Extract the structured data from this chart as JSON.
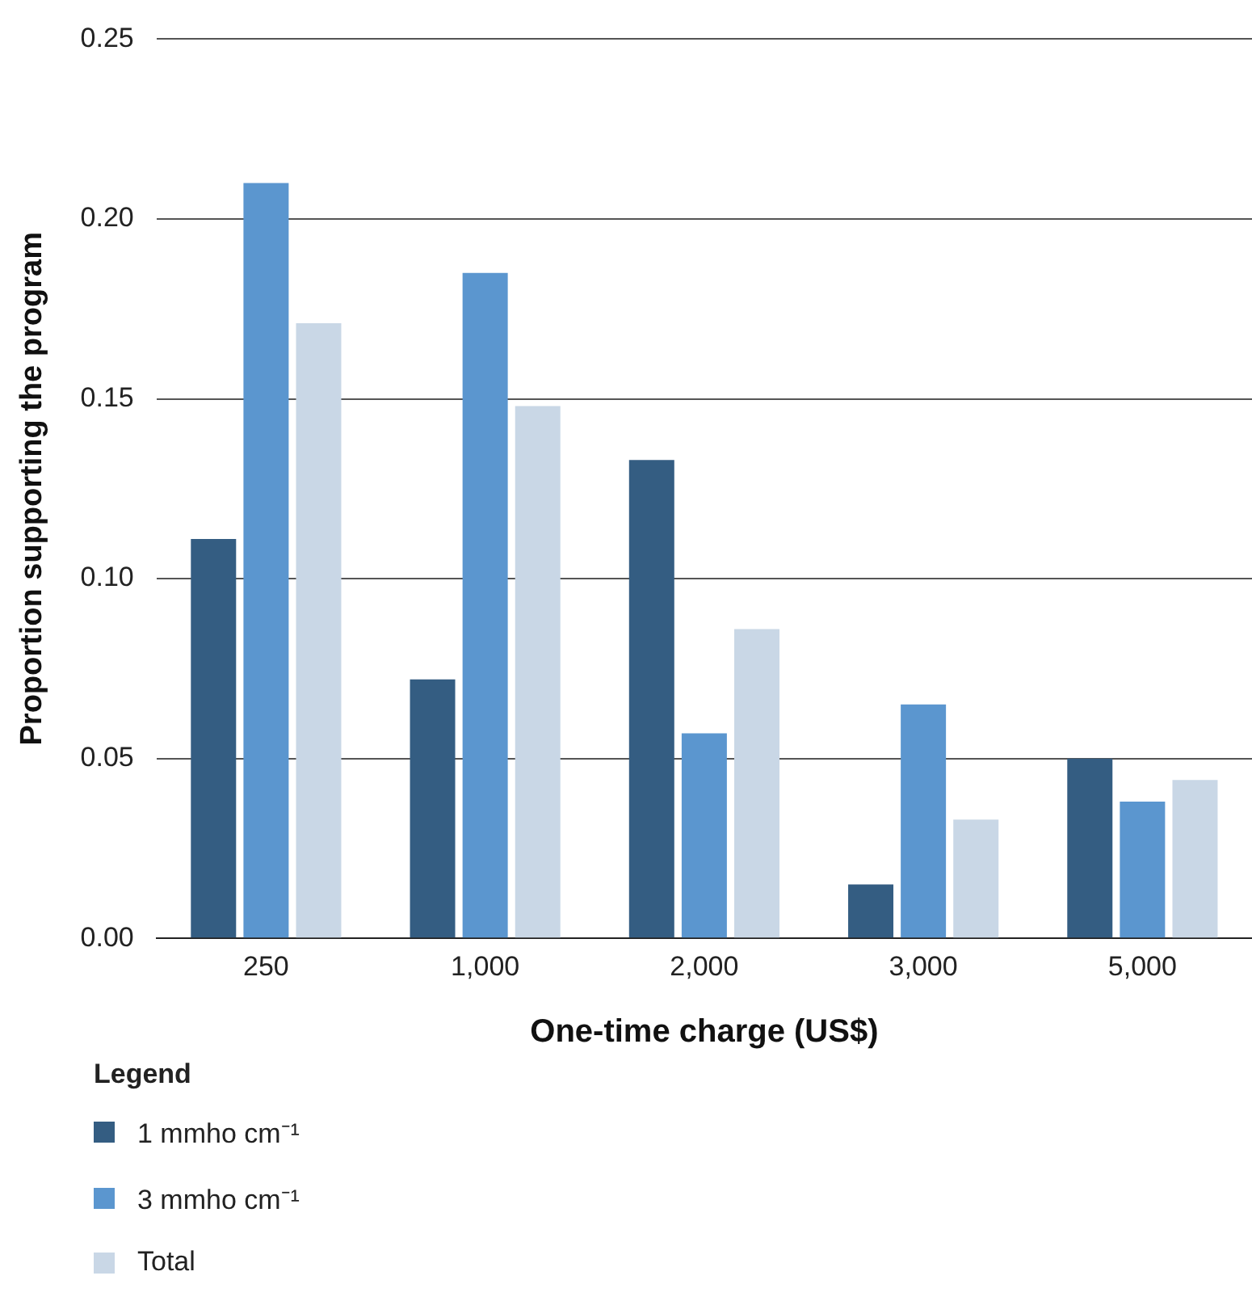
{
  "chart_data": {
    "type": "bar",
    "xlabel": "One-time charge (US$)",
    "ylabel": "Proportion supporting the program",
    "legend_title": "Legend",
    "categories": [
      "250",
      "1,000",
      "2,000",
      "3,000",
      "5,000"
    ],
    "series": [
      {
        "name": "1 mmho cm⁻¹",
        "color": "#345d82",
        "values": [
          0.111,
          0.072,
          0.133,
          0.015,
          0.05
        ]
      },
      {
        "name": "3 mmho cm⁻¹",
        "color": "#5b96cf",
        "values": [
          0.21,
          0.185,
          0.057,
          0.065,
          0.038
        ]
      },
      {
        "name": "Total",
        "color": "#c9d7e6",
        "values": [
          0.171,
          0.148,
          0.086,
          0.033,
          0.044
        ]
      }
    ],
    "ylim": [
      0,
      0.25
    ],
    "yticks": [
      {
        "value": 0,
        "label": "0.00"
      },
      {
        "value": 0.05,
        "label": "0.05"
      },
      {
        "value": 0.1,
        "label": "0.10"
      },
      {
        "value": 0.15,
        "label": "0.15"
      },
      {
        "value": 0.2,
        "label": "0.20"
      },
      {
        "value": 0.25,
        "label": "0.25"
      }
    ],
    "grid": "y",
    "legend": "bottom left"
  }
}
